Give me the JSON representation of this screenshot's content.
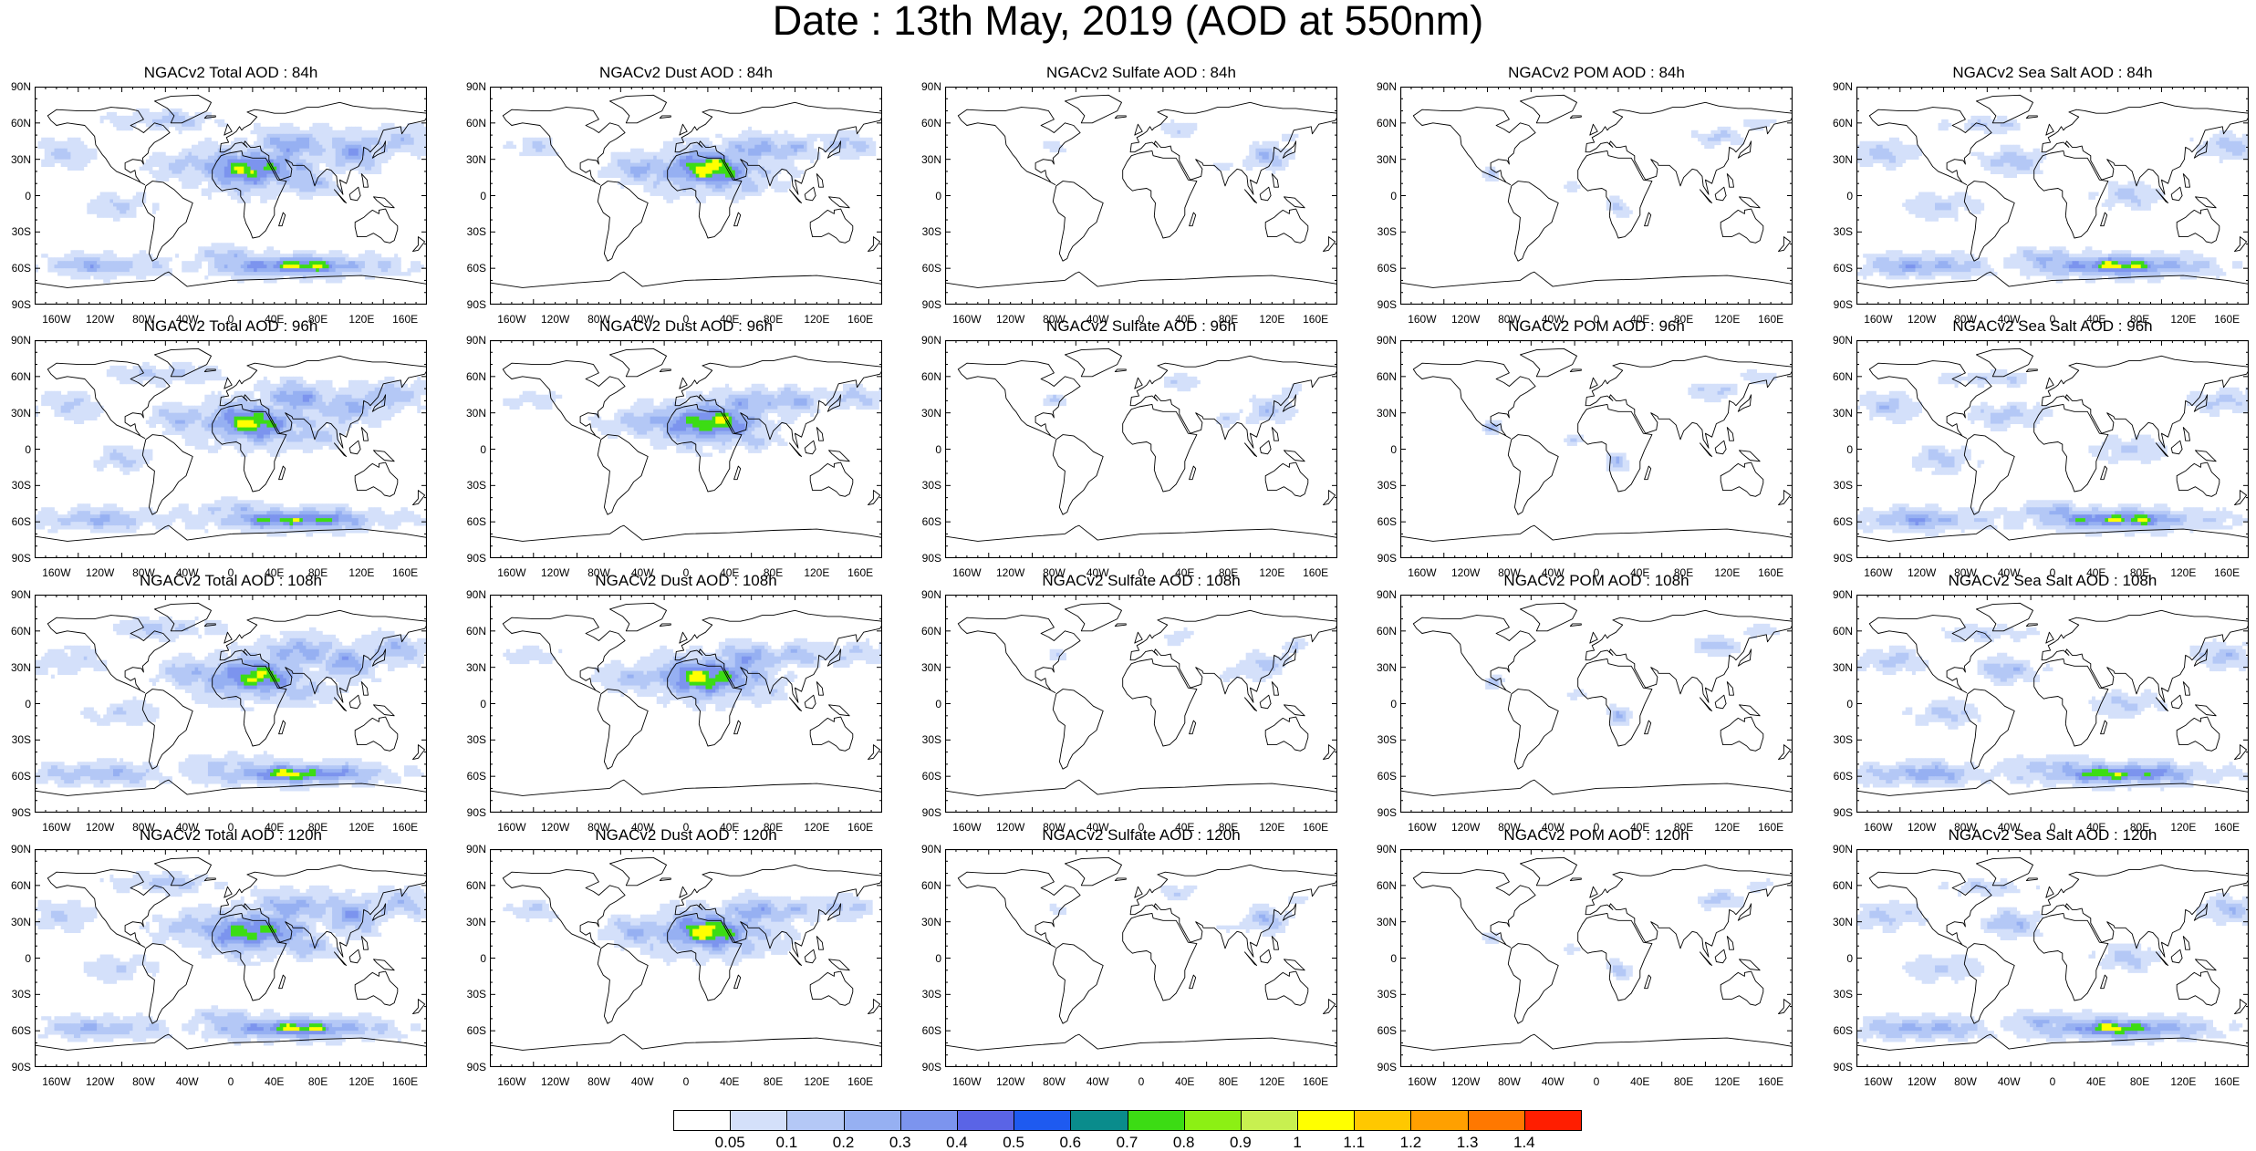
{
  "title": "Date : 13th May, 2019 (AOD at 550nm)",
  "panels": [
    {
      "title": "NGACv2 Total AOD : 84h",
      "species": "total"
    },
    {
      "title": "NGACv2 Dust AOD : 84h",
      "species": "dust"
    },
    {
      "title": "NGACv2 Sulfate AOD : 84h",
      "species": "sulfate"
    },
    {
      "title": "NGACv2 POM AOD : 84h",
      "species": "pom"
    },
    {
      "title": "NGACv2 Sea Salt AOD : 84h",
      "species": "seasalt"
    },
    {
      "title": "NGACv2 Total AOD : 96h",
      "species": "total"
    },
    {
      "title": "NGACv2 Dust AOD : 96h",
      "species": "dust"
    },
    {
      "title": "NGACv2 Sulfate AOD : 96h",
      "species": "sulfate"
    },
    {
      "title": "NGACv2 POM AOD : 96h",
      "species": "pom"
    },
    {
      "title": "NGACv2 Sea Salt AOD : 96h",
      "species": "seasalt"
    },
    {
      "title": "NGACv2 Total AOD : 108h",
      "species": "total"
    },
    {
      "title": "NGACv2 Dust AOD : 108h",
      "species": "dust"
    },
    {
      "title": "NGACv2 Sulfate AOD : 108h",
      "species": "sulfate"
    },
    {
      "title": "NGACv2 POM AOD : 108h",
      "species": "pom"
    },
    {
      "title": "NGACv2 Sea Salt AOD : 108h",
      "species": "seasalt"
    },
    {
      "title": "NGACv2 Total AOD : 120h",
      "species": "total"
    },
    {
      "title": "NGACv2 Dust AOD : 120h",
      "species": "dust"
    },
    {
      "title": "NGACv2 Sulfate AOD : 120h",
      "species": "sulfate"
    },
    {
      "title": "NGACv2 POM AOD : 120h",
      "species": "pom"
    },
    {
      "title": "NGACv2 Sea Salt  AOD : 120h",
      "species": "seasalt"
    }
  ],
  "lat_labels": [
    "90N",
    "60N",
    "30N",
    "0",
    "30S",
    "60S",
    "90S"
  ],
  "lon_labels": [
    "160W",
    "120W",
    "80W",
    "40W",
    "0",
    "40E",
    "80E",
    "120E",
    "160E"
  ],
  "colorbar": {
    "labels": [
      "0.05",
      "0.1",
      "0.2",
      "0.3",
      "0.4",
      "0.5",
      "0.6",
      "0.7",
      "0.8",
      "0.9",
      "1",
      "1.1",
      "1.2",
      "1.3",
      "1.4"
    ],
    "colors": [
      "#ffffff",
      "#d4e0fa",
      "#b4c8f6",
      "#96b0f2",
      "#7c94ee",
      "#5a64e6",
      "#1e5af0",
      "#0a8c8c",
      "#3cdc14",
      "#8cf014",
      "#c8f050",
      "#ffff00",
      "#ffc800",
      "#ffa000",
      "#ff7800",
      "#ff1e00"
    ]
  }
}
